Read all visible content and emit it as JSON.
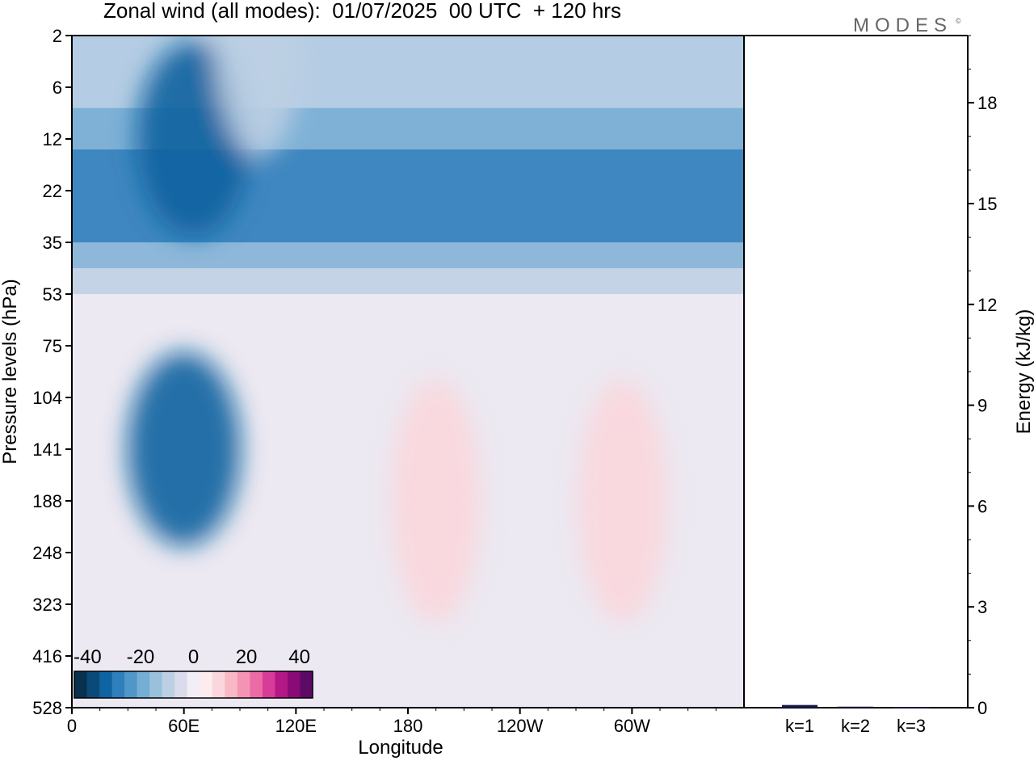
{
  "figure": {
    "title": "Zonal wind (all modes):  01/07/2025  00 UTC  + 120 hrs",
    "logo": "MODES",
    "logo_mark": "©"
  },
  "colors": {
    "colorbar": [
      "#08304f",
      "#0a4a78",
      "#0e63a0",
      "#2e7fbb",
      "#4f97c8",
      "#74aed4",
      "#99c1dc",
      "#bccfe3",
      "#dadcec",
      "#f2eef5",
      "#fdecee",
      "#fbd6dc",
      "#f8b8c5",
      "#f494b2",
      "#ec6aa6",
      "#d83c98",
      "#b31886",
      "#8a0a78",
      "#5c0a66"
    ],
    "field_ramp": {
      "neg_max": "#0a5f9c",
      "mid_neg": "#74aed4",
      "zero": "#f4f1f7",
      "pos": "#f6aab7"
    },
    "bar": "#1a1a4a"
  },
  "chart_data": [
    {
      "type": "heatmap",
      "variable": "Zonal wind (all modes)",
      "xlabel": "Longitude",
      "ylabel": "Pressure levels (hPa)",
      "x_ticks": [
        "0",
        "60E",
        "120E",
        "180",
        "120W",
        "60W"
      ],
      "y_ticks": [
        "2",
        "6",
        "12",
        "22",
        "35",
        "53",
        "75",
        "104",
        "141",
        "188",
        "248",
        "323",
        "416",
        "528"
      ],
      "colorbar": {
        "ticks": [
          -40,
          -20,
          0,
          20,
          40
        ],
        "range": [
          -45,
          45
        ],
        "step": 5
      },
      "features": [
        {
          "longitude": 60,
          "pressure": 141,
          "value": -35
        },
        {
          "longitude": 65,
          "pressure": 12,
          "value": -35
        },
        {
          "longitude": 195,
          "pressure": 188,
          "value": 12
        },
        {
          "longitude": 295,
          "pressure": 188,
          "value": 11
        },
        {
          "longitude": 100,
          "pressure": 2,
          "value": -8
        }
      ]
    },
    {
      "type": "bar",
      "categories": [
        "k=1",
        "k=2",
        "k=3"
      ],
      "values": [
        0.08,
        0.03,
        0.02
      ],
      "ylabel": "Energy (kJ/kg)",
      "ylim": [
        0,
        20
      ],
      "y_ticks": [
        0,
        3,
        6,
        9,
        12,
        15,
        18
      ]
    }
  ]
}
